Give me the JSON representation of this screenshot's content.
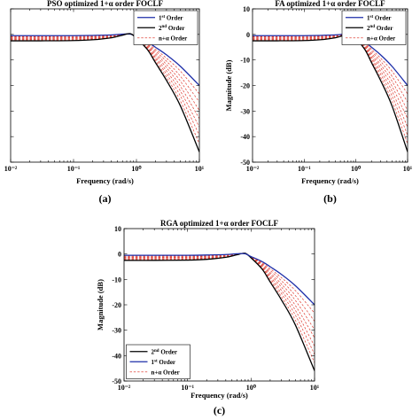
{
  "chart_data": [
    {
      "type": "line",
      "panel_label": "(a)",
      "title": "PSO optimized 1+α order FOCLF",
      "xlabel": "Frequency (rad/s)",
      "ylabel": "",
      "xscale": "log",
      "xlim": [
        0.01,
        10
      ],
      "ylim": [
        -50,
        10
      ],
      "xticks": [
        0.01,
        0.1,
        1,
        10
      ],
      "xtick_labels": [
        "10⁻²",
        "10⁻¹",
        "10⁰",
        "10¹"
      ],
      "yticks": [
        10,
        0,
        -10,
        -20,
        -30,
        -40,
        -50
      ],
      "ytick_labels": [],
      "grid": false,
      "legend_position": "top-right",
      "x": [
        0.01,
        0.03,
        0.1,
        0.2,
        0.4,
        0.6,
        0.8,
        1,
        1.5,
        2,
        3,
        5,
        10
      ],
      "series": [
        {
          "name": "1st Order",
          "color": "#1c2da8",
          "style": "solid",
          "values": [
            -0.5,
            -0.5,
            -0.5,
            -0.4,
            -0.2,
            0.1,
            0.1,
            -1,
            -3,
            -5,
            -8,
            -12.5,
            -20
          ]
        },
        {
          "name": "2nd Order",
          "color": "#000000",
          "style": "solid",
          "values": [
            -2.5,
            -2.5,
            -2.4,
            -2.1,
            -1.3,
            -0.3,
            0.3,
            -1.5,
            -6,
            -11,
            -18,
            -28,
            -46
          ]
        },
        {
          "name": "n+α Order",
          "color": "#e0463c",
          "style": "dashed",
          "curves": [
            [
              -0.8,
              -0.8,
              -0.7,
              -0.6,
              -0.3,
              0.1,
              0.1,
              -1.1,
              -3.4,
              -5.8,
              -9.3,
              -14.4,
              -23.3
            ],
            [
              -1.0,
              -1.0,
              -1.0,
              -0.8,
              -0.5,
              0.0,
              0.2,
              -1.1,
              -3.8,
              -6.5,
              -10.5,
              -16.4,
              -26.5
            ],
            [
              -1.3,
              -1.3,
              -1.2,
              -1.0,
              -0.6,
              -0.1,
              0.2,
              -1.2,
              -4.1,
              -7.3,
              -11.8,
              -18.3,
              -29.8
            ],
            [
              -1.5,
              -1.5,
              -1.4,
              -1.3,
              -0.8,
              -0.1,
              0.2,
              -1.3,
              -4.5,
              -8.0,
              -13.0,
              -20.3,
              -33.0
            ],
            [
              -1.8,
              -1.8,
              -1.7,
              -1.5,
              -0.9,
              -0.2,
              0.2,
              -1.3,
              -4.9,
              -8.8,
              -14.3,
              -22.2,
              -36.3
            ],
            [
              -2.0,
              -2.0,
              -1.9,
              -1.7,
              -1.0,
              -0.2,
              0.3,
              -1.4,
              -5.3,
              -9.5,
              -15.5,
              -24.1,
              -39.5
            ],
            [
              -2.3,
              -2.3,
              -2.2,
              -1.9,
              -1.2,
              -0.3,
              0.3,
              -1.4,
              -5.6,
              -10.3,
              -16.8,
              -26.1,
              -42.8
            ]
          ]
        }
      ]
    },
    {
      "type": "line",
      "panel_label": "(b)",
      "title": "FA optimized 1+α order FOCLF",
      "xlabel": "Frequency (rad/s)",
      "ylabel": "Magnitude (dB)",
      "xscale": "log",
      "xlim": [
        0.01,
        10
      ],
      "ylim": [
        -50,
        10
      ],
      "xticks": [
        0.01,
        0.1,
        1,
        10
      ],
      "xtick_labels": [
        "10⁻²",
        "10⁻¹",
        "10⁰",
        "10¹"
      ],
      "yticks": [
        10,
        0,
        -10,
        -20,
        -30,
        -40,
        -50
      ],
      "ytick_labels": [
        "10",
        "0",
        "-10",
        "-20",
        "-30",
        "-40",
        "-50"
      ],
      "grid": false,
      "legend_position": "top-right",
      "x": [
        0.01,
        0.03,
        0.1,
        0.2,
        0.4,
        0.6,
        0.8,
        1,
        1.5,
        2,
        3,
        5,
        10
      ],
      "series": [
        {
          "name": "1st Order",
          "color": "#1c2da8",
          "style": "solid",
          "values": [
            -0.5,
            -0.5,
            -0.5,
            -0.4,
            -0.2,
            0.1,
            0.1,
            -1,
            -3,
            -5,
            -8,
            -12.5,
            -20
          ]
        },
        {
          "name": "2nd Order",
          "color": "#000000",
          "style": "solid",
          "values": [
            -2.5,
            -2.5,
            -2.4,
            -2.1,
            -1.3,
            -0.3,
            0.3,
            -1.5,
            -6,
            -11,
            -18,
            -28,
            -46
          ]
        },
        {
          "name": "n+α Order",
          "color": "#e0463c",
          "style": "dashed",
          "curves": [
            [
              -0.8,
              -0.8,
              -0.7,
              -0.6,
              -0.3,
              0.1,
              0.1,
              -1.1,
              -3.4,
              -5.8,
              -9.3,
              -14.4,
              -23.3
            ],
            [
              -1.0,
              -1.0,
              -1.0,
              -0.8,
              -0.5,
              0.0,
              0.2,
              -1.1,
              -3.8,
              -6.5,
              -10.5,
              -16.4,
              -26.5
            ],
            [
              -1.3,
              -1.3,
              -1.2,
              -1.0,
              -0.6,
              -0.1,
              0.2,
              -1.2,
              -4.1,
              -7.3,
              -11.8,
              -18.3,
              -29.8
            ],
            [
              -1.5,
              -1.5,
              -1.4,
              -1.3,
              -0.8,
              -0.1,
              0.2,
              -1.3,
              -4.5,
              -8.0,
              -13.0,
              -20.3,
              -33.0
            ],
            [
              -1.8,
              -1.8,
              -1.7,
              -1.5,
              -0.9,
              -0.2,
              0.2,
              -1.3,
              -4.9,
              -8.8,
              -14.3,
              -22.2,
              -36.3
            ],
            [
              -2.0,
              -2.0,
              -1.9,
              -1.7,
              -1.0,
              -0.2,
              0.3,
              -1.4,
              -5.3,
              -9.5,
              -15.5,
              -24.1,
              -39.5
            ],
            [
              -2.3,
              -2.3,
              -2.2,
              -1.9,
              -1.2,
              -0.3,
              0.3,
              -1.4,
              -5.6,
              -10.3,
              -16.8,
              -26.1,
              -42.8
            ]
          ]
        }
      ]
    },
    {
      "type": "line",
      "panel_label": "(c)",
      "title": "RGA optimized 1+α order FOCLF",
      "xlabel": "Frequency (rad/s)",
      "ylabel": "Magnitude (dB)",
      "xscale": "log",
      "xlim": [
        0.01,
        10
      ],
      "ylim": [
        -50,
        10
      ],
      "xticks": [
        0.01,
        0.1,
        1,
        10
      ],
      "xtick_labels": [
        "10⁻²",
        "10⁻¹",
        "10⁰",
        "10¹"
      ],
      "yticks": [
        10,
        0,
        -10,
        -20,
        -30,
        -40,
        -50
      ],
      "ytick_labels": [
        "10",
        "0",
        "-10",
        "-20",
        "-30",
        "-40",
        "-50"
      ],
      "grid": false,
      "legend_position": "bottom-left",
      "x": [
        0.01,
        0.03,
        0.1,
        0.2,
        0.4,
        0.6,
        0.8,
        1,
        1.5,
        2,
        3,
        5,
        10
      ],
      "series": [
        {
          "name": "2nd Order",
          "color": "#000000",
          "style": "solid",
          "values": [
            -2.5,
            -2.5,
            -2.4,
            -2.1,
            -1.3,
            -0.3,
            0.3,
            -1.5,
            -6,
            -11,
            -18,
            -28,
            -46
          ]
        },
        {
          "name": "1st Order",
          "color": "#1c2da8",
          "style": "solid",
          "values": [
            -0.5,
            -0.5,
            -0.5,
            -0.4,
            -0.2,
            0.1,
            0.1,
            -1,
            -3,
            -5,
            -8,
            -12.5,
            -20
          ]
        },
        {
          "name": "n+α Order",
          "color": "#e0463c",
          "style": "dashed",
          "curves": [
            [
              -0.8,
              -0.8,
              -0.7,
              -0.6,
              -0.3,
              0.1,
              0.1,
              -1.1,
              -3.4,
              -5.8,
              -9.3,
              -14.4,
              -23.3
            ],
            [
              -1.0,
              -1.0,
              -1.0,
              -0.8,
              -0.5,
              0.0,
              0.2,
              -1.1,
              -3.8,
              -6.5,
              -10.5,
              -16.4,
              -26.5
            ],
            [
              -1.3,
              -1.3,
              -1.2,
              -1.0,
              -0.6,
              -0.1,
              0.2,
              -1.2,
              -4.1,
              -7.3,
              -11.8,
              -18.3,
              -29.8
            ],
            [
              -1.5,
              -1.5,
              -1.4,
              -1.3,
              -0.8,
              -0.1,
              0.2,
              -1.3,
              -4.5,
              -8.0,
              -13.0,
              -20.3,
              -33.0
            ],
            [
              -1.8,
              -1.8,
              -1.7,
              -1.5,
              -0.9,
              -0.2,
              0.2,
              -1.3,
              -4.9,
              -8.8,
              -14.3,
              -22.2,
              -36.3
            ],
            [
              -2.0,
              -2.0,
              -1.9,
              -1.7,
              -1.0,
              -0.2,
              0.3,
              -1.4,
              -5.3,
              -9.5,
              -15.5,
              -24.1,
              -39.5
            ],
            [
              -2.3,
              -2.3,
              -2.2,
              -1.9,
              -1.2,
              -0.3,
              0.3,
              -1.4,
              -5.6,
              -10.3,
              -16.8,
              -26.1,
              -42.8
            ]
          ]
        }
      ]
    }
  ]
}
